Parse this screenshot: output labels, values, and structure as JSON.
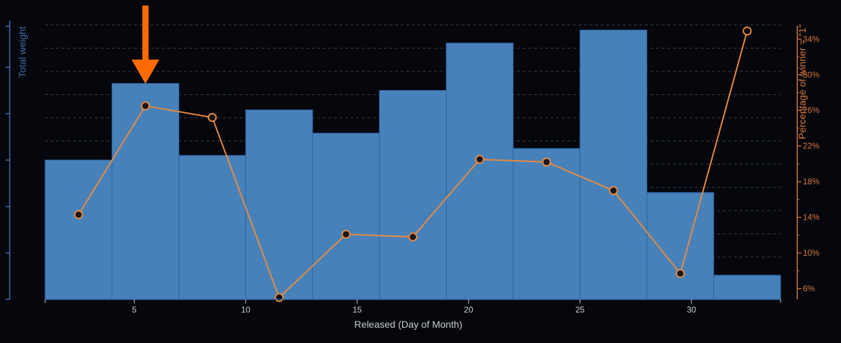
{
  "chart_data": {
    "type": "bar",
    "xlabel": "Released (Day of Month)",
    "ylabel_left": "Total weight",
    "ylabel_right": "Percentage of winner = \"1\"",
    "x_domain": [
      1,
      34
    ],
    "x_ticks": [
      5,
      10,
      15,
      20,
      25,
      30
    ],
    "bins": [
      {
        "x0": 1,
        "x1": 4,
        "weight": 300
      },
      {
        "x0": 4,
        "x1": 7,
        "weight": 465
      },
      {
        "x0": 7,
        "x1": 10,
        "weight": 310
      },
      {
        "x0": 10,
        "x1": 13,
        "weight": 408
      },
      {
        "x0": 13,
        "x1": 16,
        "weight": 358
      },
      {
        "x0": 16,
        "x1": 19,
        "weight": 450
      },
      {
        "x0": 19,
        "x1": 22,
        "weight": 552
      },
      {
        "x0": 22,
        "x1": 25,
        "weight": 325
      },
      {
        "x0": 25,
        "x1": 28,
        "weight": 580
      },
      {
        "x0": 28,
        "x1": 31,
        "weight": 230
      },
      {
        "x0": 31,
        "x1": 34,
        "weight": 52
      }
    ],
    "ylim_left": [
      0,
      600
    ],
    "series": [
      {
        "name": "Percentage of winner = \"1\"",
        "x": [
          2.5,
          5.5,
          8.5,
          11.5,
          14.5,
          17.5,
          20.5,
          23.5,
          26.5,
          29.5,
          32.5
        ],
        "values": [
          14.3,
          26.5,
          25.2,
          5.0,
          12.1,
          11.8,
          20.5,
          20.2,
          17.0,
          7.7,
          34.9
        ]
      }
    ],
    "ylim_right": [
      4.8,
      35.5
    ],
    "right_ticks": [
      6,
      10,
      14,
      18,
      22,
      26,
      30,
      34
    ],
    "right_tick_labels": [
      "6%",
      "10%",
      "14%",
      "18%",
      "22%",
      "26%",
      "30%",
      "34%"
    ],
    "highlighted_bin": 1,
    "grid": true,
    "colors": {
      "background": "#05070d",
      "bar": "#4682b9",
      "bar_edge": "#2f63a6",
      "line": "#e8893f",
      "marker_fill": "#16161c",
      "left_axis": "#3e6da8",
      "right_axis": "#d9773a",
      "arrow": "#ff6a00",
      "text": "#c9ccd2",
      "grid": "#3a3d45"
    }
  }
}
